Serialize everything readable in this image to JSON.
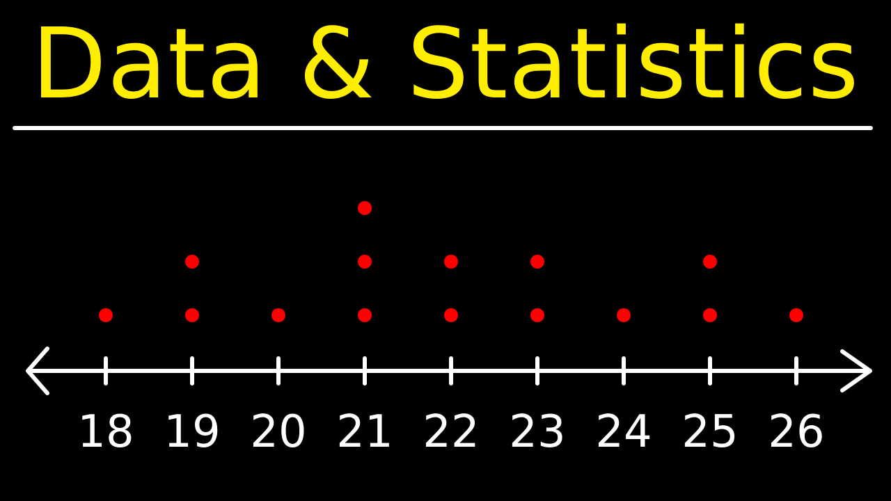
{
  "title": "Data & Statistics",
  "colors": {
    "background": "#000000",
    "title": "#ffee00",
    "axis": "#ffffff",
    "dots": "#ff0000"
  },
  "chart_data": {
    "type": "scatter",
    "subtype": "dot-plot",
    "title": "",
    "xlabel": "",
    "ylabel": "",
    "xlim": [
      17,
      27
    ],
    "ticks": [
      18,
      19,
      20,
      21,
      22,
      23,
      24,
      25,
      26
    ],
    "counts": [
      {
        "x": 18,
        "count": 1
      },
      {
        "x": 19,
        "count": 2
      },
      {
        "x": 20,
        "count": 1
      },
      {
        "x": 21,
        "count": 3
      },
      {
        "x": 22,
        "count": 2
      },
      {
        "x": 23,
        "count": 2
      },
      {
        "x": 24,
        "count": 1
      },
      {
        "x": 25,
        "count": 2
      },
      {
        "x": 26,
        "count": 1
      }
    ],
    "grid": false,
    "axis_arrows": "both-ends"
  }
}
